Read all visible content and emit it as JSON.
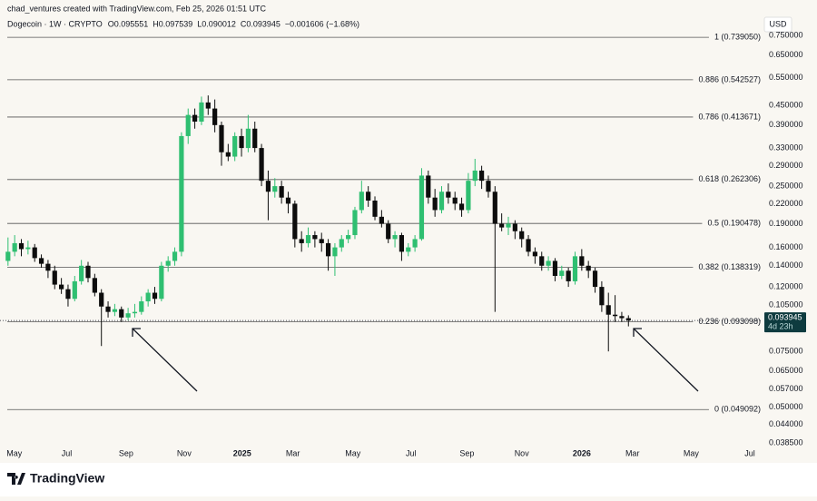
{
  "chart_data": {
    "type": "candlestick",
    "credit": "chad_ventures created with TradingView.com, Feb 25, 2026 01:51 UTC",
    "symbol": "Dogecoin · 1W · CRYPTO",
    "ohlc_text": [
      "O0.095551",
      "H0.097539",
      "L0.090012",
      "C0.093945",
      "−0.001606 (−1.68%)"
    ],
    "currency": "USD",
    "brand": "TradingView",
    "log_scale": true,
    "up_color": "#2fbf71",
    "down_color": "#0d0d0d",
    "x": [
      0,
      1,
      2,
      3,
      4,
      5,
      6,
      7,
      8,
      9,
      10,
      11,
      12,
      13,
      14,
      15,
      16,
      17,
      18,
      19,
      20,
      21,
      22,
      23,
      24,
      25,
      26,
      27,
      28,
      29,
      30,
      31,
      32,
      33,
      34,
      35,
      36,
      37,
      38,
      39,
      40,
      41,
      42,
      43,
      44,
      45,
      46,
      47,
      48,
      49,
      50,
      51,
      52,
      53,
      54,
      55,
      56,
      57,
      58,
      59,
      60,
      61,
      62,
      63,
      64,
      65,
      66,
      67,
      68,
      69,
      70,
      71,
      72,
      73,
      74,
      75,
      76,
      77,
      78,
      79,
      80,
      81,
      82,
      83,
      84,
      85,
      86,
      87,
      88,
      89,
      90,
      91,
      92,
      93
    ],
    "open": [
      0.145,
      0.155,
      0.165,
      0.158,
      0.16,
      0.148,
      0.142,
      0.135,
      0.122,
      0.118,
      0.11,
      0.125,
      0.14,
      0.128,
      0.115,
      0.104,
      0.1,
      0.102,
      0.096,
      0.099,
      0.1,
      0.108,
      0.115,
      0.11,
      0.14,
      0.145,
      0.155,
      0.36,
      0.42,
      0.4,
      0.46,
      0.44,
      0.39,
      0.32,
      0.31,
      0.36,
      0.33,
      0.38,
      0.33,
      0.26,
      0.24,
      0.25,
      0.23,
      0.22,
      0.17,
      0.165,
      0.175,
      0.17,
      0.165,
      0.15,
      0.16,
      0.17,
      0.175,
      0.21,
      0.24,
      0.225,
      0.2,
      0.19,
      0.17,
      0.175,
      0.155,
      0.16,
      0.17,
      0.27,
      0.23,
      0.21,
      0.24,
      0.23,
      0.22,
      0.21,
      0.26,
      0.28,
      0.26,
      0.24,
      0.19,
      0.185,
      0.19,
      0.18,
      0.17,
      0.155,
      0.15,
      0.14,
      0.145,
      0.13,
      0.135,
      0.125,
      0.15,
      0.14,
      0.135,
      0.12,
      0.105,
      0.098,
      0.097,
      0.095551
    ],
    "high": [
      0.172,
      0.175,
      0.17,
      0.168,
      0.164,
      0.152,
      0.146,
      0.14,
      0.128,
      0.122,
      0.13,
      0.146,
      0.144,
      0.132,
      0.118,
      0.108,
      0.106,
      0.104,
      0.103,
      0.106,
      0.112,
      0.118,
      0.12,
      0.144,
      0.15,
      0.16,
      0.37,
      0.44,
      0.44,
      0.48,
      0.484,
      0.47,
      0.4,
      0.34,
      0.37,
      0.38,
      0.42,
      0.4,
      0.34,
      0.28,
      0.265,
      0.26,
      0.24,
      0.225,
      0.18,
      0.185,
      0.18,
      0.178,
      0.17,
      0.165,
      0.175,
      0.182,
      0.215,
      0.26,
      0.25,
      0.232,
      0.21,
      0.195,
      0.18,
      0.178,
      0.165,
      0.175,
      0.285,
      0.28,
      0.245,
      0.25,
      0.255,
      0.24,
      0.23,
      0.275,
      0.305,
      0.29,
      0.27,
      0.25,
      0.205,
      0.2,
      0.195,
      0.185,
      0.175,
      0.16,
      0.155,
      0.15,
      0.148,
      0.14,
      0.138,
      0.155,
      0.158,
      0.145,
      0.138,
      0.125,
      0.115,
      0.113,
      0.1,
      0.097539
    ],
    "low": [
      0.14,
      0.15,
      0.15,
      0.152,
      0.144,
      0.138,
      0.128,
      0.118,
      0.114,
      0.104,
      0.108,
      0.122,
      0.124,
      0.112,
      0.078,
      0.096,
      0.097,
      0.093,
      0.094,
      0.096,
      0.098,
      0.104,
      0.106,
      0.108,
      0.134,
      0.14,
      0.15,
      0.34,
      0.38,
      0.39,
      0.42,
      0.37,
      0.29,
      0.3,
      0.3,
      0.31,
      0.32,
      0.32,
      0.25,
      0.195,
      0.23,
      0.22,
      0.205,
      0.16,
      0.155,
      0.16,
      0.16,
      0.155,
      0.135,
      0.13,
      0.155,
      0.165,
      0.17,
      0.205,
      0.215,
      0.195,
      0.185,
      0.165,
      0.16,
      0.145,
      0.15,
      0.155,
      0.168,
      0.22,
      0.2,
      0.205,
      0.22,
      0.21,
      0.2,
      0.205,
      0.25,
      0.245,
      0.23,
      0.1,
      0.18,
      0.175,
      0.17,
      0.16,
      0.15,
      0.142,
      0.135,
      0.135,
      0.125,
      0.127,
      0.12,
      0.122,
      0.135,
      0.128,
      0.115,
      0.1,
      0.075,
      0.093,
      0.093,
      0.090012
    ],
    "close": [
      0.155,
      0.165,
      0.158,
      0.16,
      0.148,
      0.142,
      0.135,
      0.122,
      0.118,
      0.11,
      0.125,
      0.14,
      0.128,
      0.115,
      0.104,
      0.1,
      0.102,
      0.096,
      0.099,
      0.1,
      0.108,
      0.115,
      0.11,
      0.14,
      0.145,
      0.155,
      0.36,
      0.42,
      0.4,
      0.46,
      0.44,
      0.39,
      0.32,
      0.31,
      0.36,
      0.33,
      0.38,
      0.33,
      0.26,
      0.24,
      0.25,
      0.23,
      0.22,
      0.17,
      0.165,
      0.175,
      0.17,
      0.165,
      0.15,
      0.16,
      0.17,
      0.175,
      0.21,
      0.24,
      0.225,
      0.2,
      0.19,
      0.17,
      0.175,
      0.155,
      0.16,
      0.17,
      0.27,
      0.23,
      0.21,
      0.24,
      0.23,
      0.22,
      0.21,
      0.26,
      0.28,
      0.26,
      0.24,
      0.19,
      0.185,
      0.19,
      0.18,
      0.17,
      0.155,
      0.15,
      0.14,
      0.145,
      0.13,
      0.135,
      0.125,
      0.15,
      0.14,
      0.135,
      0.12,
      0.105,
      0.098,
      0.097,
      0.095551,
      0.093945
    ],
    "last_price_label": "0.093945",
    "countdown": "4d 23h",
    "fib_levels": [
      {
        "label": "1 (0.739050)",
        "value": 0.73905
      },
      {
        "label": "0.886 (0.542527)",
        "value": 0.542527
      },
      {
        "label": "0.786 (0.413671)",
        "value": 0.413671
      },
      {
        "label": "0.618 (0.262306)",
        "value": 0.262306
      },
      {
        "label": "0.5 (0.190478)",
        "value": 0.190478
      },
      {
        "label": "0.382 (0.138319)",
        "value": 0.138319
      },
      {
        "label": "0.236 (0.093098)",
        "value": 0.093098
      },
      {
        "label": "0 (0.049092)",
        "value": 0.049092
      }
    ],
    "xlim": [
      -1.2,
      113.1
    ],
    "ylim": [
      0.038,
      0.85
    ],
    "xticks": [
      {
        "value": 0.95,
        "label": "May"
      },
      {
        "value": 8.8,
        "label": "Jul"
      },
      {
        "value": 17.7,
        "label": "Sep"
      },
      {
        "value": 26.4,
        "label": "Nov"
      },
      {
        "value": 35.1,
        "label": "2025"
      },
      {
        "value": 42.7,
        "label": "Mar"
      },
      {
        "value": 51.7,
        "label": "May"
      },
      {
        "value": 60.4,
        "label": "Jul"
      },
      {
        "value": 68.8,
        "label": "Sep"
      },
      {
        "value": 77,
        "label": "Nov"
      },
      {
        "value": 86,
        "label": "2026"
      },
      {
        "value": 93.6,
        "label": "Mar"
      },
      {
        "value": 102.4,
        "label": "May"
      },
      {
        "value": 111.2,
        "label": "Jul"
      }
    ],
    "yticks": [
      {
        "value": 0.75,
        "label": "0.750000"
      },
      {
        "value": 0.65,
        "label": "0.650000"
      },
      {
        "value": 0.55,
        "label": "0.550000"
      },
      {
        "value": 0.45,
        "label": "0.450000"
      },
      {
        "value": 0.39,
        "label": "0.390000"
      },
      {
        "value": 0.33,
        "label": "0.330000"
      },
      {
        "value": 0.29,
        "label": "0.290000"
      },
      {
        "value": 0.25,
        "label": "0.250000"
      },
      {
        "value": 0.22,
        "label": "0.220000"
      },
      {
        "value": 0.19,
        "label": "0.190000"
      },
      {
        "value": 0.16,
        "label": "0.160000"
      },
      {
        "value": 0.14,
        "label": "0.140000"
      },
      {
        "value": 0.12,
        "label": "0.120000"
      },
      {
        "value": 0.105,
        "label": "0.105000"
      },
      {
        "value": 0.075,
        "label": "0.075000"
      },
      {
        "value": 0.065,
        "label": "0.065000"
      },
      {
        "value": 0.057,
        "label": "0.057000"
      },
      {
        "value": 0.05,
        "label": "0.050000"
      },
      {
        "value": 0.044,
        "label": "0.044000"
      },
      {
        "value": 0.0385,
        "label": "0.038500"
      }
    ]
  }
}
